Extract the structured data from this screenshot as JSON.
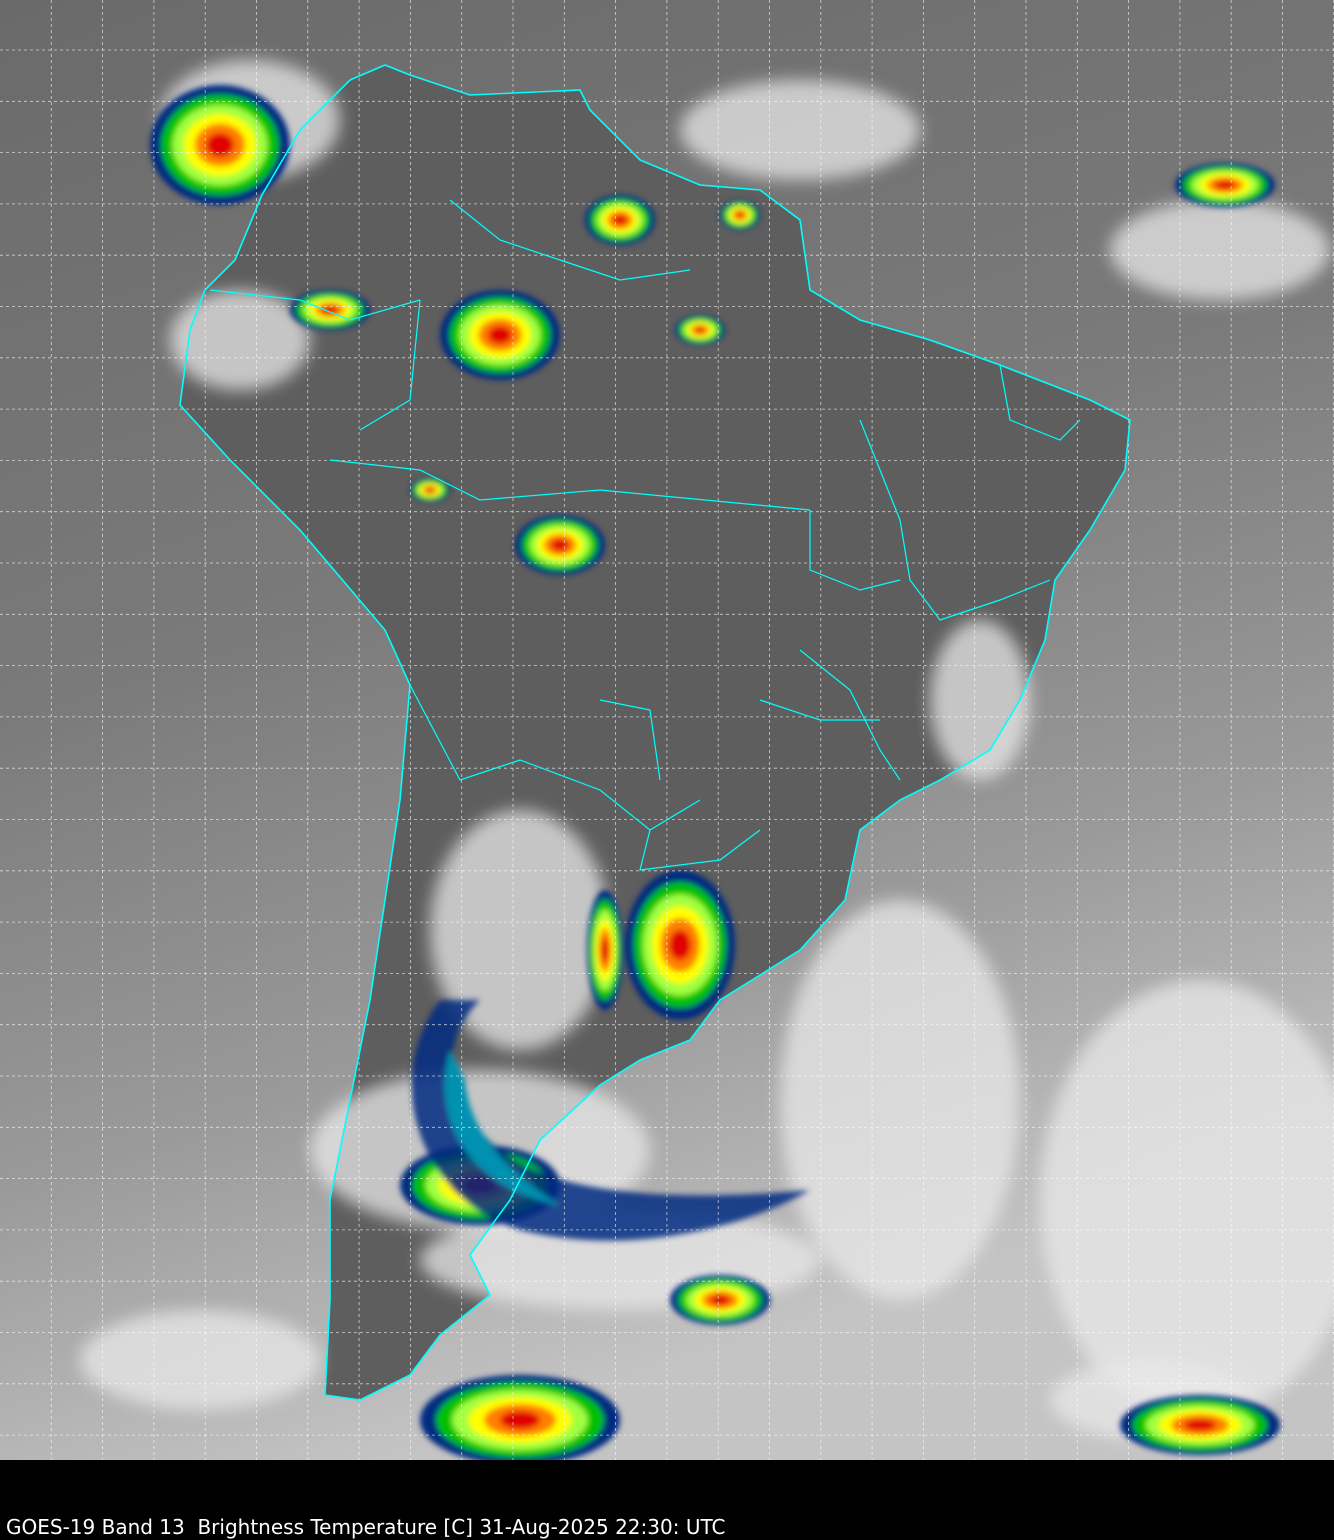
{
  "caption": "GOES-19 Band 13  Brightness Temperature [C] 31-Aug-2025 22:30: UTC",
  "colors": {
    "background": "#000000",
    "coastline": "#00ffff",
    "gridline": "#ffffff",
    "cold_cloud_scale": [
      "#00e5ff",
      "#0090b0",
      "#002a80",
      "#00c000",
      "#a0ff40",
      "#ffff00",
      "#ff8000",
      "#e00000",
      "#300000"
    ]
  },
  "map": {
    "region": "South America",
    "gridlines": true
  }
}
